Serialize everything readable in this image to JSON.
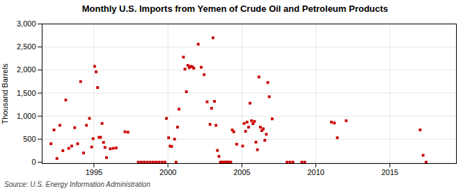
{
  "chart_data": {
    "type": "scatter",
    "title": "Monthly U.S. Imports from Yemen of Crude Oil and Petroleum Products",
    "ylabel": "Thousand Barrels",
    "caption": "Source: U.S. Energy Information Administration",
    "color": "#cc0000",
    "marker": "square",
    "grid": true,
    "xlim": [
      1991.5,
      2019.5
    ],
    "ylim": [
      -30,
      3000
    ],
    "xticks": [
      1995,
      2000,
      2005,
      2010,
      2015
    ],
    "yticks": [
      0,
      500,
      {
        "value": 1000,
        "label": "1,000"
      },
      {
        "value": 1500,
        "label": "1,500"
      },
      {
        "value": 2000,
        "label": "2,000"
      },
      {
        "value": 2500,
        "label": "2,500"
      },
      {
        "value": 3000,
        "label": "3,000"
      }
    ],
    "x": [
      1992.1,
      1992.3,
      1992.5,
      1992.7,
      1992.9,
      1993.1,
      1993.3,
      1993.5,
      1993.7,
      1993.9,
      1994.1,
      1994.3,
      1994.5,
      1994.7,
      1994.85,
      1994.95,
      1995.05,
      1995.15,
      1995.25,
      1995.35,
      1995.45,
      1995.55,
      1995.65,
      1995.75,
      1995.85,
      1996.1,
      1996.3,
      1996.5,
      1997.1,
      1997.3,
      1998.0,
      1998.2,
      1998.4,
      1998.6,
      1998.8,
      1999.0,
      1999.2,
      1999.4,
      1999.6,
      1999.8,
      1999.9,
      2000.05,
      2000.15,
      2000.25,
      2000.45,
      2000.55,
      2000.65,
      2000.75,
      2001.05,
      2001.15,
      2001.25,
      2001.35,
      2001.45,
      2001.55,
      2001.65,
      2001.75,
      2002.05,
      2002.25,
      2002.45,
      2002.65,
      2002.85,
      2002.95,
      2003.05,
      2003.15,
      2003.25,
      2003.35,
      2003.45,
      2003.55,
      2003.65,
      2003.75,
      2003.85,
      2003.95,
      2004.05,
      2004.15,
      2004.25,
      2004.35,
      2004.45,
      2004.65,
      2005.05,
      2005.15,
      2005.25,
      2005.35,
      2005.45,
      2005.55,
      2005.65,
      2005.75,
      2005.85,
      2005.95,
      2006.05,
      2006.15,
      2006.25,
      2006.35,
      2006.45,
      2006.55,
      2006.65,
      2006.75,
      2006.85,
      2007.05,
      2008.05,
      2008.25,
      2008.45,
      2009.05,
      2009.25,
      2011.05,
      2011.25,
      2011.45,
      2012.05,
      2017.05,
      2017.25,
      2017.45
    ],
    "values": [
      400,
      700,
      80,
      800,
      250,
      1350,
      300,
      350,
      750,
      400,
      1750,
      200,
      800,
      950,
      330,
      510,
      2080,
      1960,
      1620,
      540,
      540,
      840,
      430,
      320,
      100,
      290,
      300,
      310,
      660,
      650,
      0,
      0,
      0,
      0,
      0,
      0,
      0,
      0,
      0,
      0,
      950,
      530,
      350,
      340,
      500,
      0,
      760,
      1150,
      2280,
      2020,
      1530,
      2100,
      2050,
      2080,
      2070,
      2040,
      2560,
      2060,
      1900,
      1310,
      820,
      1170,
      2700,
      1320,
      800,
      255,
      125,
      0,
      0,
      0,
      0,
      0,
      0,
      0,
      0,
      700,
      660,
      390,
      350,
      840,
      670,
      870,
      760,
      1280,
      900,
      835,
      885,
      435,
      270,
      1850,
      760,
      685,
      725,
      475,
      605,
      1730,
      1420,
      940,
      0,
      0,
      0,
      0,
      0,
      870,
      850,
      530,
      900,
      700,
      150,
      0
    ]
  }
}
